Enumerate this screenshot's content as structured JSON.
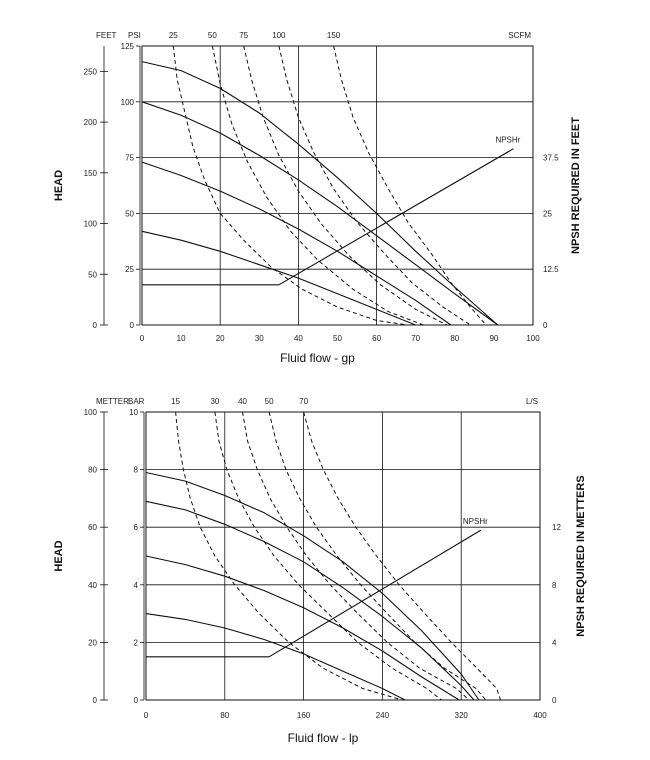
{
  "chart_data": [
    {
      "type": "line",
      "xlabel": "Fluid flow - gp",
      "left_outer_axis_label": "FEET",
      "left_inner_axis_label": "PSI",
      "top_right_label": "SCFM",
      "left_vertical_title": "HEAD",
      "right_vertical_title": "NPSH REQUIRED IN FEET",
      "x_ticks": [
        "0",
        "10",
        "20",
        "30",
        "40",
        "50",
        "60",
        "70",
        "80",
        "90",
        "100"
      ],
      "feet_ticks": [
        "0",
        "50",
        "100",
        "150",
        "200",
        "250"
      ],
      "psi_ticks": [
        "0",
        "25",
        "50",
        "75",
        "100",
        "125"
      ],
      "npsh_ticks": [
        "0",
        "12.5",
        "25",
        "37.5"
      ],
      "air_ticks": [
        "25",
        "50",
        "75",
        "100",
        "150"
      ],
      "npsh_label": "NPSHr",
      "xlim": [
        0,
        100
      ],
      "ylim": [
        0,
        125
      ],
      "npsh_lim": [
        0,
        62.5
      ],
      "grid_x": [
        20,
        40,
        60
      ],
      "grid_y": [
        25,
        50,
        75,
        100
      ],
      "series": [
        {
          "style": "solid",
          "x": [
            0,
            10,
            20,
            30,
            40,
            50,
            60,
            70,
            80,
            91
          ],
          "y": [
            118,
            114,
            106,
            95,
            81,
            66,
            50,
            33,
            17,
            0
          ]
        },
        {
          "style": "solid",
          "x": [
            0,
            10,
            20,
            30,
            40,
            50,
            60,
            70,
            80,
            91
          ],
          "y": [
            100,
            94,
            86,
            76,
            65,
            53,
            40,
            27,
            14,
            0
          ]
        },
        {
          "style": "solid",
          "x": [
            0,
            10,
            20,
            30,
            40,
            50,
            60,
            70,
            79
          ],
          "y": [
            73,
            67,
            60,
            52,
            43,
            33,
            22,
            11,
            0
          ]
        },
        {
          "style": "solid",
          "x": [
            0,
            10,
            20,
            30,
            40,
            50,
            60,
            70
          ],
          "y": [
            42,
            38,
            33,
            27,
            21,
            14,
            7,
            0
          ]
        },
        {
          "style": "solid",
          "x": [
            0,
            20,
            35
          ],
          "y": [
            18,
            18,
            18
          ]
        },
        {
          "style": "solid",
          "x": [
            35,
            95
          ],
          "y": [
            18,
            79
          ]
        },
        {
          "style": "dashed",
          "x": [
            8,
            9,
            11,
            13,
            16,
            20,
            26,
            33,
            41,
            50,
            60,
            68
          ],
          "y": [
            125,
            110,
            95,
            80,
            65,
            50,
            38,
            26,
            16,
            8,
            2,
            0
          ]
        },
        {
          "style": "dashed",
          "x": [
            18,
            20,
            23,
            27,
            32,
            38,
            45,
            54,
            63,
            72
          ],
          "y": [
            125,
            108,
            90,
            73,
            57,
            42,
            29,
            16,
            6,
            0
          ]
        },
        {
          "style": "dashed",
          "x": [
            26,
            28,
            31,
            35,
            40,
            46,
            53,
            61,
            70,
            78
          ],
          "y": [
            125,
            110,
            93,
            76,
            60,
            45,
            31,
            18,
            7,
            0
          ]
        },
        {
          "style": "dashed",
          "x": [
            35,
            37,
            40,
            44,
            49,
            55,
            62,
            69,
            77,
            84
          ],
          "y": [
            125,
            110,
            93,
            77,
            61,
            46,
            32,
            19,
            8,
            0
          ]
        },
        {
          "style": "dashed",
          "x": [
            49,
            51,
            54,
            58,
            63,
            68,
            74,
            79,
            84,
            88
          ],
          "y": [
            125,
            110,
            93,
            77,
            61,
            46,
            32,
            19,
            8,
            0
          ]
        }
      ]
    },
    {
      "type": "line",
      "xlabel": "Fluid flow - lp",
      "left_outer_axis_label": "METTER",
      "left_inner_axis_label": "BAR",
      "top_right_label": "L/S",
      "left_vertical_title": "HEAD",
      "right_vertical_title": "NPSH REQUIRED IN METTERS",
      "x_ticks": [
        "0",
        "80",
        "160",
        "240",
        "320",
        "400"
      ],
      "meter_ticks": [
        "0",
        "20",
        "40",
        "60",
        "80",
        "100"
      ],
      "bar_ticks": [
        "0",
        "2",
        "4",
        "6",
        "8",
        "10"
      ],
      "npsh_ticks": [
        "0",
        "4",
        "8",
        "12"
      ],
      "air_ticks": [
        "15",
        "30",
        "40",
        "50",
        "70"
      ],
      "npsh_label": "NPSHr",
      "xlim": [
        0,
        400
      ],
      "ylim": [
        0,
        10
      ],
      "npsh_lim": [
        0,
        20
      ],
      "grid_x": [
        80,
        160,
        240,
        320
      ],
      "grid_y": [
        2,
        4,
        6,
        8
      ],
      "series": [
        {
          "style": "solid",
          "x": [
            0,
            40,
            80,
            120,
            160,
            200,
            240,
            280,
            320,
            338
          ],
          "y": [
            7.9,
            7.6,
            7.1,
            6.5,
            5.7,
            4.8,
            3.7,
            2.4,
            0.9,
            0
          ]
        },
        {
          "style": "solid",
          "x": [
            0,
            40,
            80,
            120,
            160,
            200,
            240,
            280,
            320,
            333
          ],
          "y": [
            6.9,
            6.6,
            6.1,
            5.5,
            4.8,
            3.9,
            2.9,
            1.8,
            0.5,
            0
          ]
        },
        {
          "style": "solid",
          "x": [
            0,
            40,
            80,
            120,
            160,
            200,
            240,
            280,
            318
          ],
          "y": [
            5.0,
            4.7,
            4.3,
            3.8,
            3.2,
            2.5,
            1.7,
            0.8,
            0
          ]
        },
        {
          "style": "solid",
          "x": [
            0,
            40,
            80,
            120,
            160,
            200,
            240,
            263
          ],
          "y": [
            3.0,
            2.8,
            2.5,
            2.1,
            1.6,
            1.0,
            0.4,
            0
          ]
        },
        {
          "style": "solid",
          "x": [
            0,
            80,
            125
          ],
          "y": [
            1.5,
            1.5,
            1.5
          ]
        },
        {
          "style": "solid",
          "x": [
            125,
            340
          ],
          "y": [
            1.5,
            5.9
          ]
        },
        {
          "style": "dashed",
          "x": [
            30,
            33,
            38,
            45,
            55,
            70,
            90,
            115,
            145,
            180,
            220,
            260
          ],
          "y": [
            10,
            9,
            8,
            7,
            6,
            5,
            4,
            3,
            2,
            1.1,
            0.4,
            0
          ]
        },
        {
          "style": "dashed",
          "x": [
            70,
            74,
            82,
            94,
            110,
            130,
            155,
            185,
            215,
            250,
            285,
            300
          ],
          "y": [
            10,
            9,
            8,
            7,
            6,
            5,
            4,
            3,
            2,
            1.1,
            0.4,
            0
          ]
        },
        {
          "style": "dashed",
          "x": [
            98,
            103,
            113,
            126,
            143,
            163,
            187,
            215,
            245,
            278,
            315,
            328
          ],
          "y": [
            10,
            9,
            8,
            7,
            6,
            5,
            4,
            3,
            2,
            1.1,
            0.4,
            0
          ]
        },
        {
          "style": "dashed",
          "x": [
            125,
            132,
            142,
            156,
            173,
            194,
            218,
            245,
            273,
            303,
            335,
            345
          ],
          "y": [
            10,
            9,
            8,
            7,
            6,
            5,
            4,
            3,
            2,
            1.1,
            0.4,
            0
          ]
        },
        {
          "style": "dashed",
          "x": [
            160,
            168,
            180,
            195,
            213,
            234,
            257,
            283,
            310,
            336,
            356,
            360
          ],
          "y": [
            10,
            9,
            8,
            7,
            6,
            5,
            4,
            3,
            2,
            1.1,
            0.4,
            0
          ]
        }
      ]
    }
  ]
}
